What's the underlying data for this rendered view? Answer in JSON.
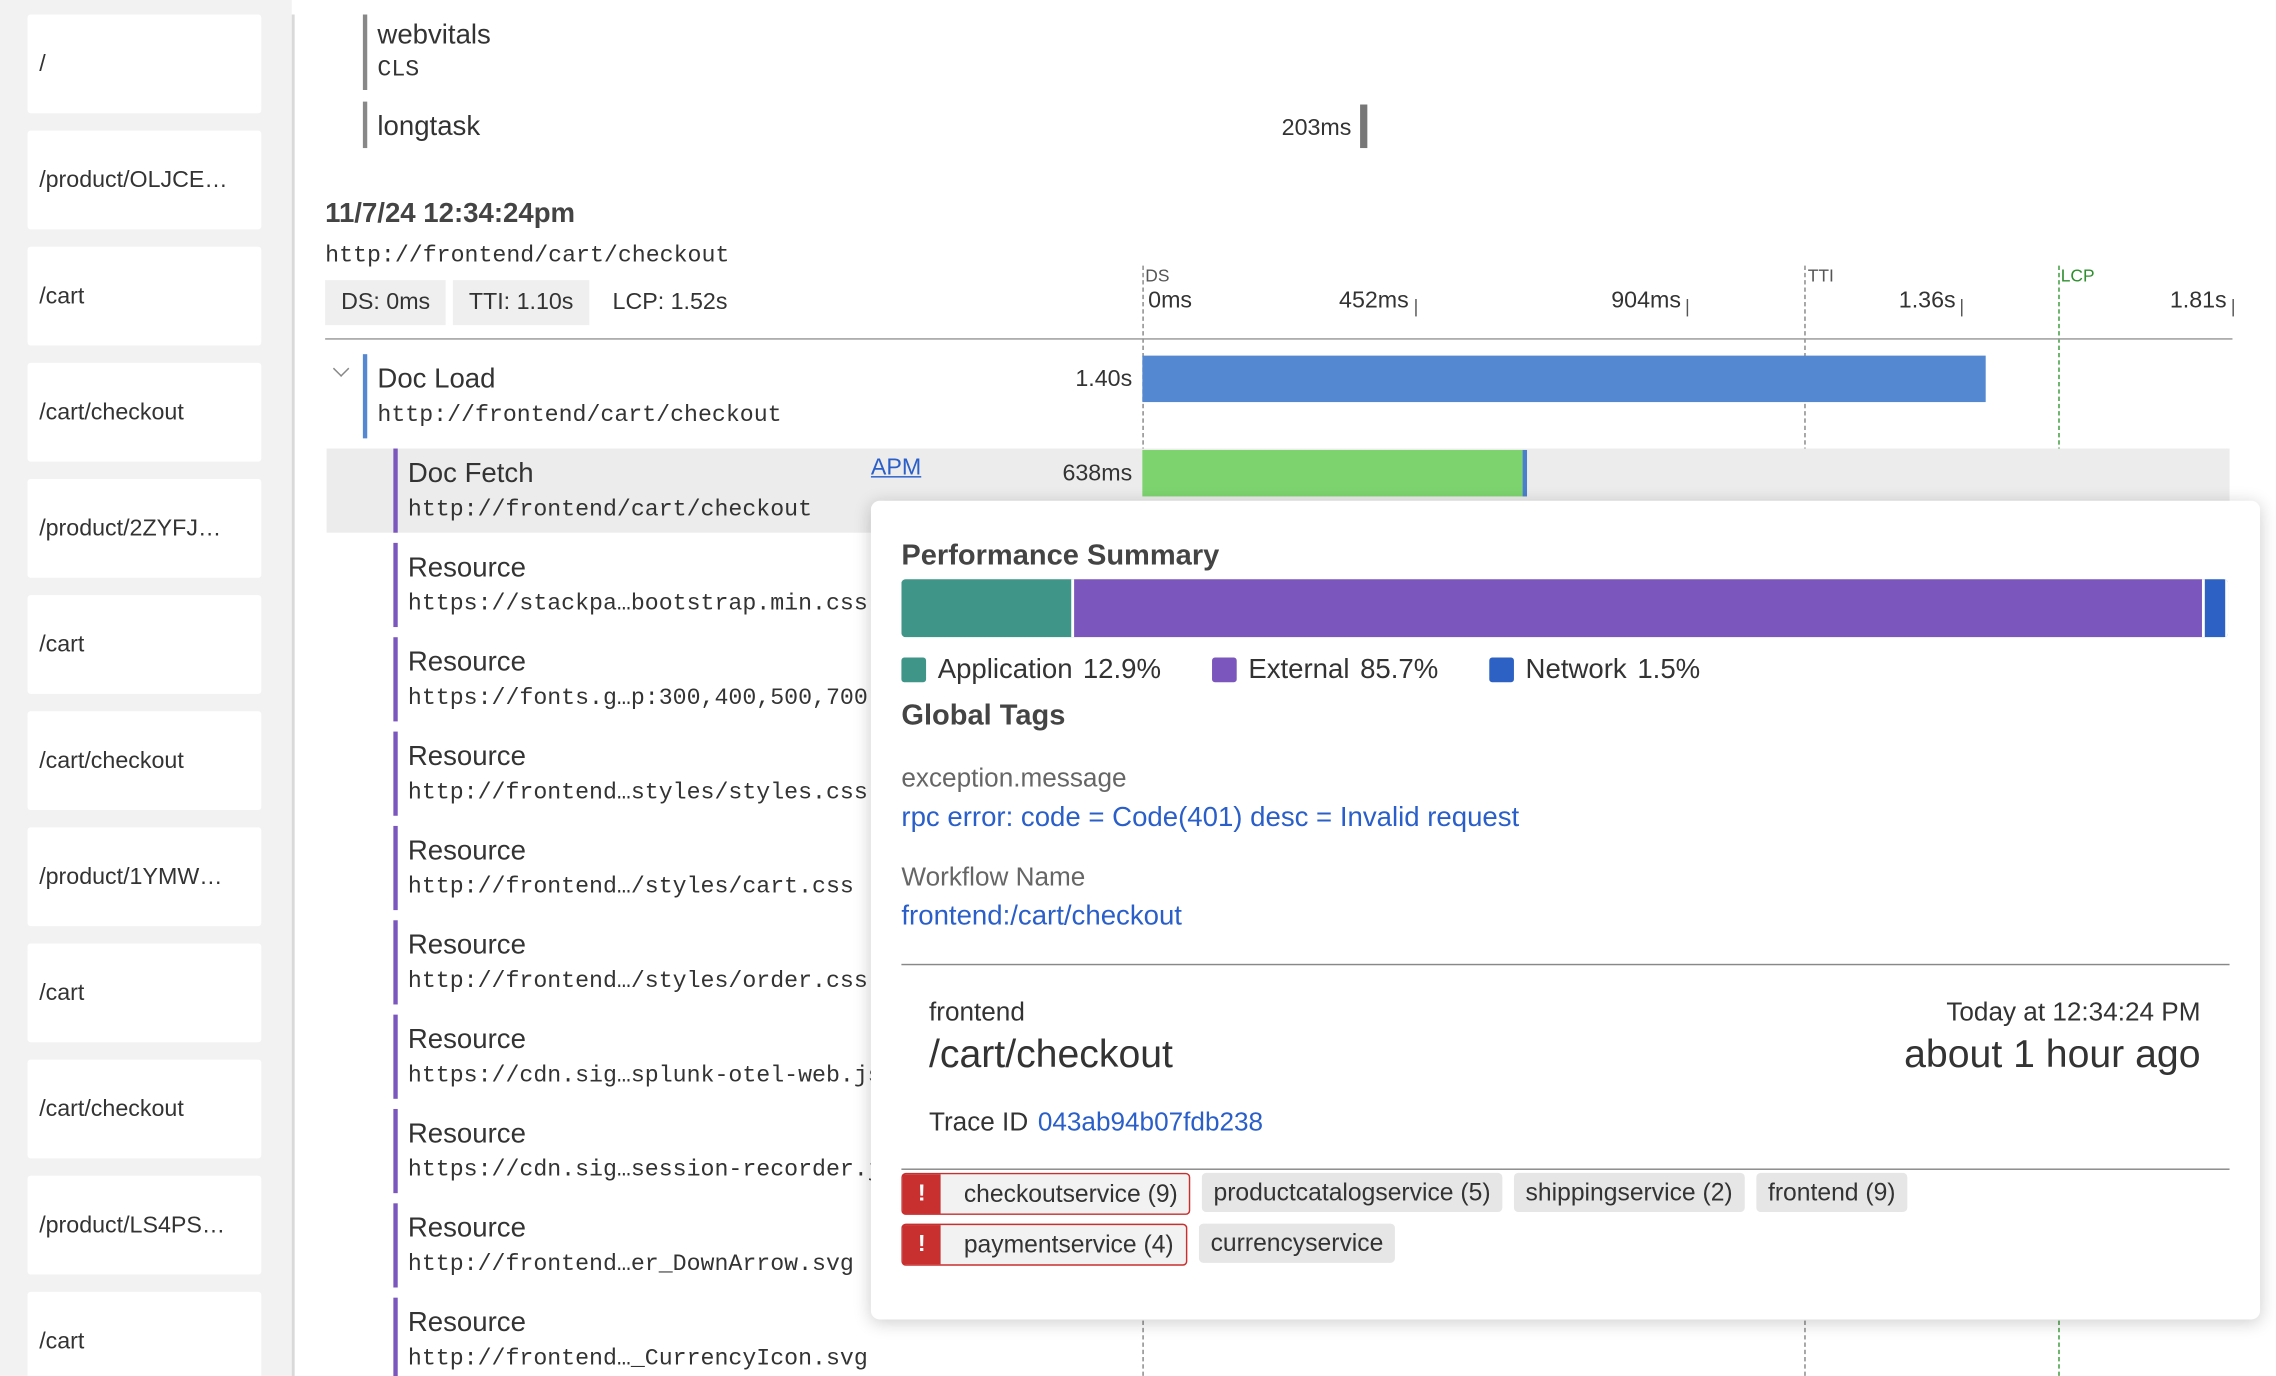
{
  "sidebar": [
    "/",
    "/product/OLJCE…",
    "/cart",
    "/cart/checkout",
    "/product/2ZYFJ…",
    "/cart",
    "/cart/checkout",
    "/product/1YMW…",
    "/cart",
    "/cart/checkout",
    "/product/LS4PS…",
    "/cart"
  ],
  "events": [
    {
      "name": "webvitals",
      "sub": "CLS"
    },
    {
      "name": "longtask",
      "duration": "203ms"
    }
  ],
  "page_load": {
    "timestamp": "11/7/24 12:34:24pm",
    "url": "http://frontend/cart/checkout",
    "metrics": [
      {
        "marker": "DS",
        "text": "DS: 0ms"
      },
      {
        "marker": "TTI",
        "text": "TTI: 1.10s"
      },
      {
        "marker": "LCP",
        "text": "LCP: 1.52s"
      }
    ],
    "axis_ticks": [
      "0ms",
      "452ms",
      "904ms",
      "1.36s",
      "1.81s"
    ],
    "rows": [
      {
        "name": "Doc Load",
        "url": "http://frontend/cart/checkout",
        "duration": "1.40s"
      },
      {
        "name": "Doc Fetch",
        "url": "http://frontend/cart/checkout",
        "link": "APM",
        "duration": "638ms"
      },
      {
        "name": "Resource",
        "url": "https://stackpa…bootstrap.min.css"
      },
      {
        "name": "Resource",
        "url": "https://fonts.g…p:300,400,500,700"
      },
      {
        "name": "Resource",
        "url": "http://frontend…styles/styles.css"
      },
      {
        "name": "Resource",
        "url": "http://frontend…/styles/cart.css"
      },
      {
        "name": "Resource",
        "url": "http://frontend…/styles/order.css"
      },
      {
        "name": "Resource",
        "url": "https://cdn.sig…splunk-otel-web.js"
      },
      {
        "name": "Resource",
        "url": "https://cdn.sig…session-recorder.js"
      },
      {
        "name": "Resource",
        "url": "http://frontend…er_DownArrow.svg"
      },
      {
        "name": "Resource",
        "url": "http://frontend…_CurrencyIcon.svg"
      }
    ]
  },
  "popup": {
    "title": "Performance Summary",
    "breakdown": [
      {
        "name": "Application",
        "percent": "12.9%",
        "color": "#3f9688"
      },
      {
        "name": "External",
        "percent": "85.7%",
        "color": "#7b57bd"
      },
      {
        "name": "Network",
        "percent": "1.5%",
        "color": "#2d62c4"
      }
    ],
    "tags_title": "Global Tags",
    "tags": [
      {
        "key": "exception.message",
        "value": "rpc error: code = Code(401) desc = Invalid request"
      },
      {
        "key": "Workflow Name",
        "value": "frontend:/cart/checkout"
      }
    ],
    "trace": {
      "service": "frontend",
      "path": "/cart/checkout",
      "time": "Today at 12:34:24 PM",
      "ago": "about 1 hour ago",
      "id_label": "Trace ID",
      "id": "043ab94b07fdb238"
    },
    "services": [
      [
        {
          "text": "checkoutservice (9)",
          "error": true
        },
        {
          "text": "productcatalogservice (5)",
          "error": false
        },
        {
          "text": "shippingservice (2)",
          "error": false
        },
        {
          "text": "frontend (9)",
          "error": false
        }
      ],
      [
        {
          "text": "paymentservice (4)",
          "error": true
        },
        {
          "text": "currencyservice",
          "error": false
        }
      ]
    ]
  }
}
